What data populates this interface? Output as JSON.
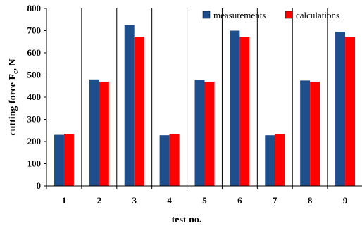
{
  "chart_data": {
    "type": "bar",
    "xlabel": "test no.",
    "ylabel": "cutting force F",
    "ylabel_sub": "c",
    "ylabel_unit": ", N",
    "ylim": [
      0,
      800
    ],
    "ytick_step": 100,
    "yticks": [
      "0",
      "100",
      "200",
      "300",
      "400",
      "500",
      "600",
      "700",
      "800"
    ],
    "categories": [
      "1",
      "2",
      "3",
      "4",
      "5",
      "6",
      "7",
      "8",
      "9"
    ],
    "series": [
      {
        "name": "measurements",
        "color": "#1f4e8c",
        "values": [
          230,
          480,
          725,
          228,
          478,
          700,
          228,
          475,
          695
        ]
      },
      {
        "name": "calculations",
        "color": "#ff0000",
        "values": [
          233,
          470,
          673,
          233,
          470,
          673,
          233,
          470,
          673
        ]
      }
    ],
    "legend_position": "top-right",
    "grid": "vertical separators"
  }
}
